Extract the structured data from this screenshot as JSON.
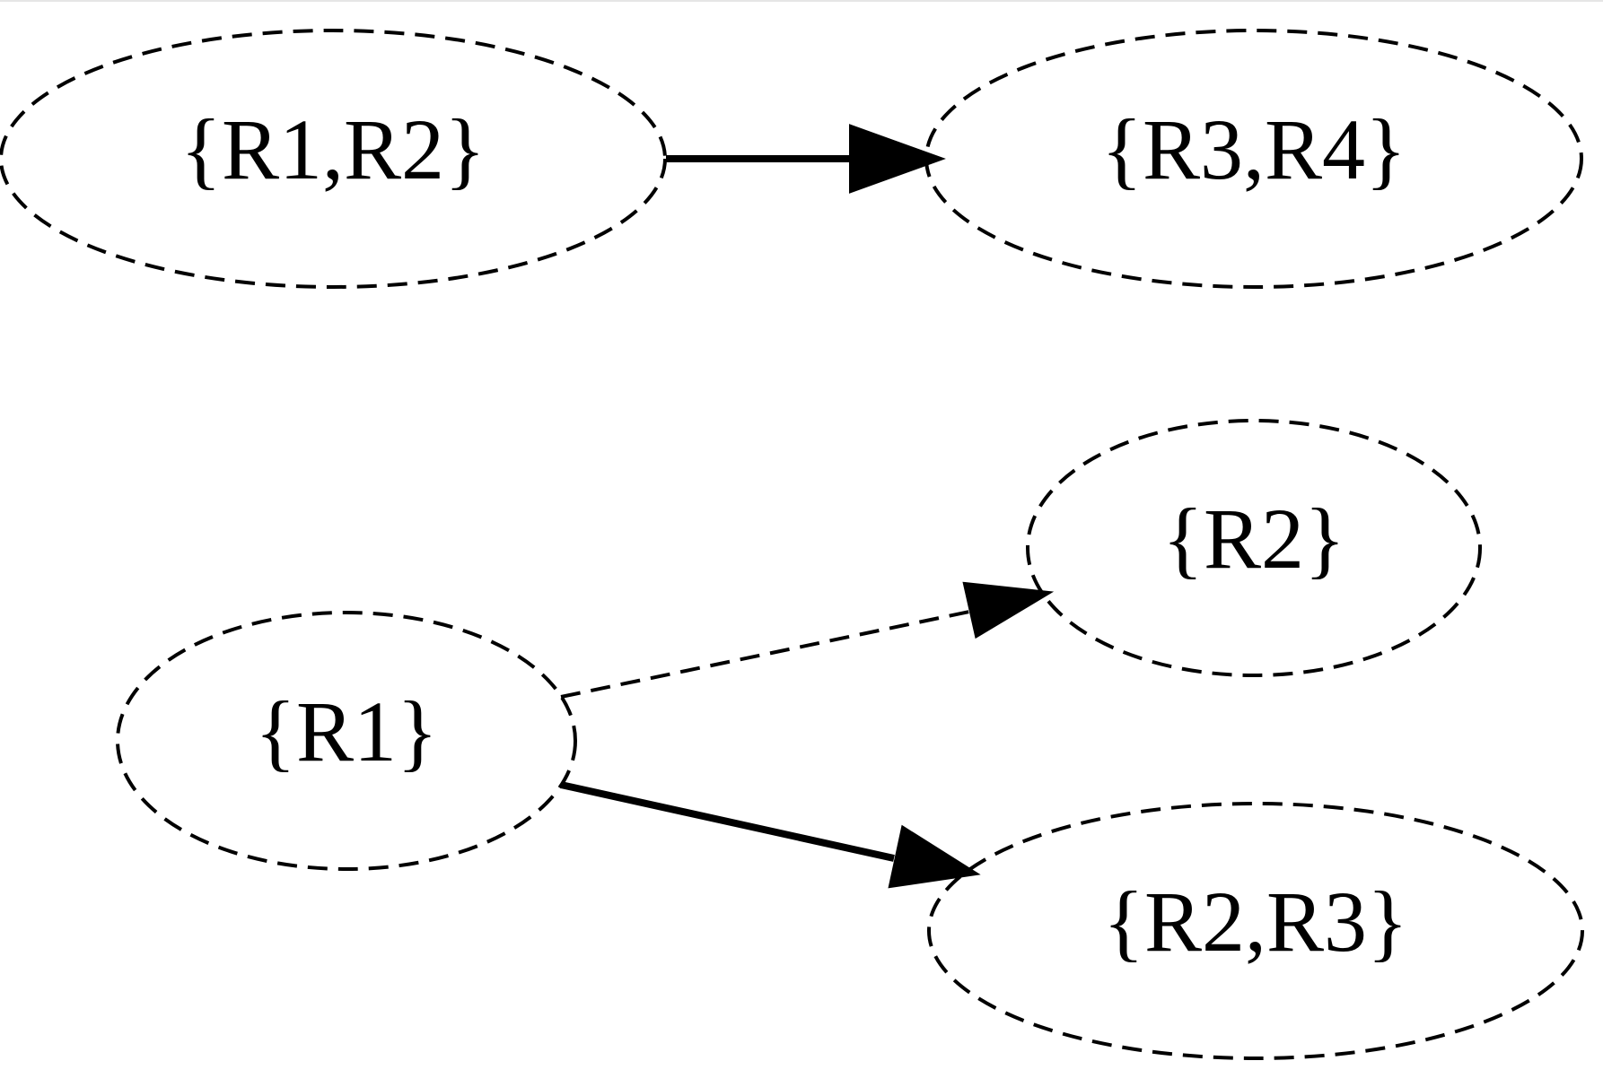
{
  "diagram": {
    "nodes": [
      {
        "id": "r1r2",
        "label": "{R1,R2}",
        "style": "dashed"
      },
      {
        "id": "r3r4",
        "label": "{R3,R4}",
        "style": "dashed"
      },
      {
        "id": "r2",
        "label": "{R2}",
        "style": "dashed"
      },
      {
        "id": "r1",
        "label": "{R1}",
        "style": "dashed"
      },
      {
        "id": "r2r3",
        "label": "{R2,R3}",
        "style": "dashed"
      }
    ],
    "edges": [
      {
        "from": "r1r2",
        "to": "r3r4",
        "style": "solid"
      },
      {
        "from": "r1",
        "to": "r2",
        "style": "dashed"
      },
      {
        "from": "r1",
        "to": "r2r3",
        "style": "solid"
      }
    ],
    "colors": {
      "stroke": "#000000",
      "background": "#ffffff"
    }
  }
}
